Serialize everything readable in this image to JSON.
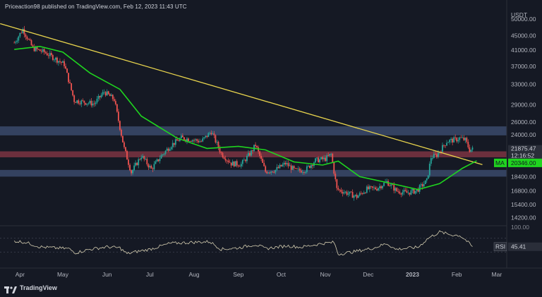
{
  "header": {
    "text": "Priceaction98 published on TradingView.com, Feb 12, 2023 11:43 UTC"
  },
  "footer": {
    "brand": "TradingView"
  },
  "colors": {
    "background": "#151924",
    "bull": "#26a69a",
    "bear": "#ef5350",
    "trendline": "#e8d44d",
    "ma": "#1fd41f",
    "demand_zone": "#3a4a6b",
    "supply_zone": "#7b3442",
    "rsi_line": "#d6cfb2"
  },
  "chart_data": {
    "type": "candlestick",
    "title": "",
    "price_axis": {
      "currency": "USDT",
      "ticks": [
        50000,
        45000,
        41000,
        37000,
        33000,
        29000,
        26000,
        24000,
        18400,
        16800,
        15400,
        14200
      ],
      "tick_labels": [
        "50000.00",
        "45000.00",
        "41000.00",
        "37000.00",
        "33000.00",
        "29000.00",
        "26000.00",
        "24000.00",
        "18400.00",
        "16800.00",
        "15400.00",
        "14200.00"
      ],
      "scale": "log"
    },
    "time_axis": {
      "labels": [
        "Apr",
        "May",
        "Jun",
        "Jul",
        "Aug",
        "Sep",
        "Oct",
        "Nov",
        "Dec",
        "2023",
        "Feb",
        "Mar"
      ],
      "bold": [
        "2023"
      ]
    },
    "last_price": {
      "value": 21875.47,
      "label": "21875.47",
      "countdown": "12:16:52"
    },
    "moving_average": {
      "name": "MA",
      "value": 20346.0,
      "label": "20346.00"
    },
    "zones": [
      {
        "kind": "resistance",
        "from": 23900,
        "to": 25300
      },
      {
        "kind": "support",
        "from": 20800,
        "to": 21600
      },
      {
        "kind": "support",
        "from": 18400,
        "to": 19200
      }
    ],
    "trendline": {
      "from": {
        "date": "2022-03-28",
        "price": 48200
      },
      "to": {
        "date": "2023-02-15",
        "price": 19900
      }
    },
    "price_path": [
      [
        "2022-03-28",
        43000
      ],
      [
        "2022-04-03",
        46800
      ],
      [
        "2022-04-10",
        41500
      ],
      [
        "2022-04-18",
        40500
      ],
      [
        "2022-04-25",
        39000
      ],
      [
        "2022-05-02",
        37500
      ],
      [
        "2022-05-09",
        29800
      ],
      [
        "2022-05-16",
        29500
      ],
      [
        "2022-05-23",
        29200
      ],
      [
        "2022-05-30",
        31500
      ],
      [
        "2022-06-06",
        30000
      ],
      [
        "2022-06-13",
        22000
      ],
      [
        "2022-06-18",
        18900
      ],
      [
        "2022-06-25",
        21000
      ],
      [
        "2022-07-02",
        19300
      ],
      [
        "2022-07-09",
        21000
      ],
      [
        "2022-07-16",
        22500
      ],
      [
        "2022-07-23",
        23500
      ],
      [
        "2022-07-30",
        23300
      ],
      [
        "2022-08-06",
        23000
      ],
      [
        "2022-08-13",
        24500
      ],
      [
        "2022-08-20",
        21300
      ],
      [
        "2022-08-27",
        20000
      ],
      [
        "2022-09-03",
        19900
      ],
      [
        "2022-09-10",
        21500
      ],
      [
        "2022-09-13",
        22500
      ],
      [
        "2022-09-20",
        19000
      ],
      [
        "2022-09-27",
        19200
      ],
      [
        "2022-10-04",
        20000
      ],
      [
        "2022-10-11",
        19100
      ],
      [
        "2022-10-18",
        19200
      ],
      [
        "2022-10-25",
        20400
      ],
      [
        "2022-11-01",
        20600
      ],
      [
        "2022-11-05",
        21200
      ],
      [
        "2022-11-09",
        17000
      ],
      [
        "2022-11-16",
        16600
      ],
      [
        "2022-11-23",
        16200
      ],
      [
        "2022-11-30",
        17000
      ],
      [
        "2022-12-07",
        17100
      ],
      [
        "2022-12-14",
        17800
      ],
      [
        "2022-12-21",
        16800
      ],
      [
        "2022-12-28",
        16600
      ],
      [
        "2023-01-04",
        16850
      ],
      [
        "2023-01-11",
        17900
      ],
      [
        "2023-01-14",
        20800
      ],
      [
        "2023-01-18",
        21100
      ],
      [
        "2023-01-25",
        23000
      ],
      [
        "2023-02-01",
        23300
      ],
      [
        "2023-02-03",
        23500
      ],
      [
        "2023-02-07",
        23200
      ],
      [
        "2023-02-10",
        21800
      ],
      [
        "2023-02-12",
        21875
      ]
    ],
    "ma_path": [
      [
        "2022-03-28",
        41200
      ],
      [
        "2022-04-15",
        42000
      ],
      [
        "2022-05-01",
        40500
      ],
      [
        "2022-05-20",
        35500
      ],
      [
        "2022-06-10",
        32000
      ],
      [
        "2022-06-25",
        27000
      ],
      [
        "2022-07-20",
        23500
      ],
      [
        "2022-08-10",
        22000
      ],
      [
        "2022-09-01",
        22300
      ],
      [
        "2022-09-20",
        21800
      ],
      [
        "2022-10-10",
        20200
      ],
      [
        "2022-10-30",
        19800
      ],
      [
        "2022-11-10",
        20300
      ],
      [
        "2022-11-25",
        18400
      ],
      [
        "2022-12-15",
        17700
      ],
      [
        "2023-01-05",
        16950
      ],
      [
        "2023-01-20",
        17600
      ],
      [
        "2023-02-05",
        19400
      ],
      [
        "2023-02-15",
        20346
      ]
    ],
    "rsi": {
      "label": "RSI",
      "value": 45.41,
      "value_label": "45.41",
      "top_tick": "100.00",
      "path": [
        [
          "2022-03-28",
          62
        ],
        [
          "2022-04-05",
          58
        ],
        [
          "2022-04-15",
          45
        ],
        [
          "2022-04-25",
          42
        ],
        [
          "2022-05-05",
          40
        ],
        [
          "2022-05-10",
          28
        ],
        [
          "2022-05-20",
          38
        ],
        [
          "2022-06-01",
          45
        ],
        [
          "2022-06-10",
          42
        ],
        [
          "2022-06-15",
          25
        ],
        [
          "2022-06-20",
          30
        ],
        [
          "2022-07-01",
          38
        ],
        [
          "2022-07-15",
          55
        ],
        [
          "2022-07-30",
          58
        ],
        [
          "2022-08-12",
          60
        ],
        [
          "2022-08-20",
          38
        ],
        [
          "2022-09-01",
          42
        ],
        [
          "2022-09-13",
          52
        ],
        [
          "2022-09-20",
          40
        ],
        [
          "2022-10-05",
          48
        ],
        [
          "2022-10-15",
          44
        ],
        [
          "2022-10-30",
          55
        ],
        [
          "2022-11-07",
          58
        ],
        [
          "2022-11-10",
          24
        ],
        [
          "2022-11-22",
          32
        ],
        [
          "2022-12-05",
          42
        ],
        [
          "2022-12-14",
          55
        ],
        [
          "2022-12-20",
          38
        ],
        [
          "2023-01-05",
          44
        ],
        [
          "2023-01-12",
          70
        ],
        [
          "2023-01-20",
          88
        ],
        [
          "2023-01-28",
          80
        ],
        [
          "2023-02-03",
          78
        ],
        [
          "2023-02-07",
          66
        ],
        [
          "2023-02-12",
          45
        ]
      ]
    }
  }
}
